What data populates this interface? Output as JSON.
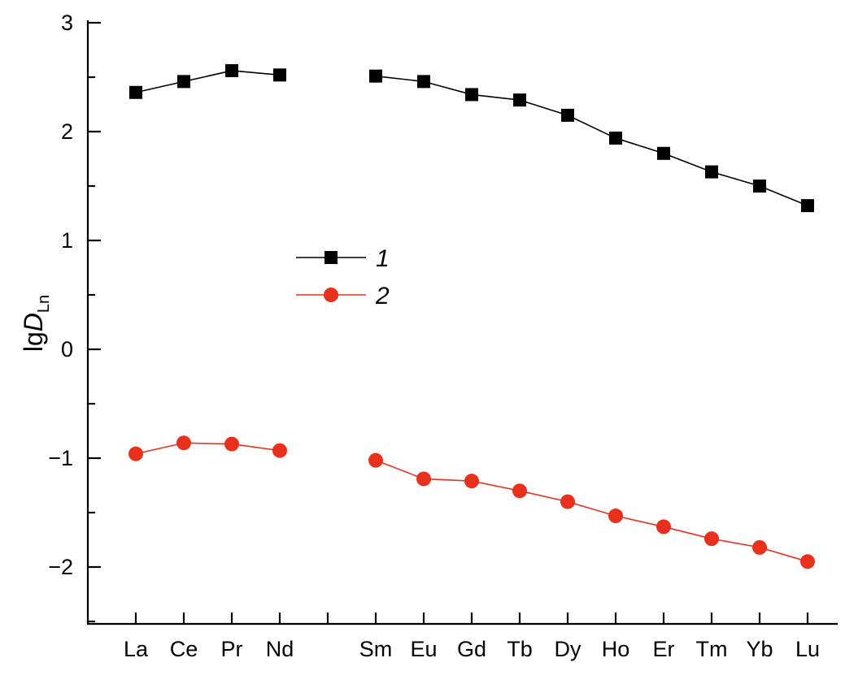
{
  "chart_data": {
    "type": "line",
    "title": "",
    "xlabel": "",
    "ylabel": {
      "main": "lg",
      "italic": "D",
      "subscript": "Ln"
    },
    "ylim": [
      -2.5,
      3
    ],
    "yticks": [
      {
        "value": 3,
        "label": "3"
      },
      {
        "value": 2,
        "label": "2"
      },
      {
        "value": 1,
        "label": "1"
      },
      {
        "value": 0,
        "label": "0"
      },
      {
        "value": -1,
        "label": "−1"
      },
      {
        "value": -2,
        "label": "−2"
      }
    ],
    "yminor": [
      2.5,
      1.5,
      0.5,
      -0.5,
      -1.5,
      -2.5
    ],
    "categories": [
      "La",
      "Ce",
      "Pr",
      "Nd",
      "",
      "Sm",
      "Eu",
      "Gd",
      "Tb",
      "Dy",
      "Ho",
      "Er",
      "Tm",
      "Yb",
      "Lu"
    ],
    "grid": false,
    "legend_position": "center-left",
    "series": [
      {
        "name": "1",
        "marker": "square",
        "color": "#000000",
        "values": [
          2.36,
          2.46,
          2.56,
          2.52,
          null,
          2.51,
          2.46,
          2.34,
          2.29,
          2.15,
          1.94,
          1.8,
          1.63,
          1.5,
          1.32
        ]
      },
      {
        "name": "2",
        "marker": "circle",
        "color": "#e8301c",
        "values": [
          -0.96,
          -0.86,
          -0.87,
          -0.93,
          null,
          -1.02,
          -1.19,
          -1.21,
          -1.3,
          -1.4,
          -1.53,
          -1.63,
          -1.74,
          -1.82,
          -1.95
        ]
      }
    ]
  }
}
